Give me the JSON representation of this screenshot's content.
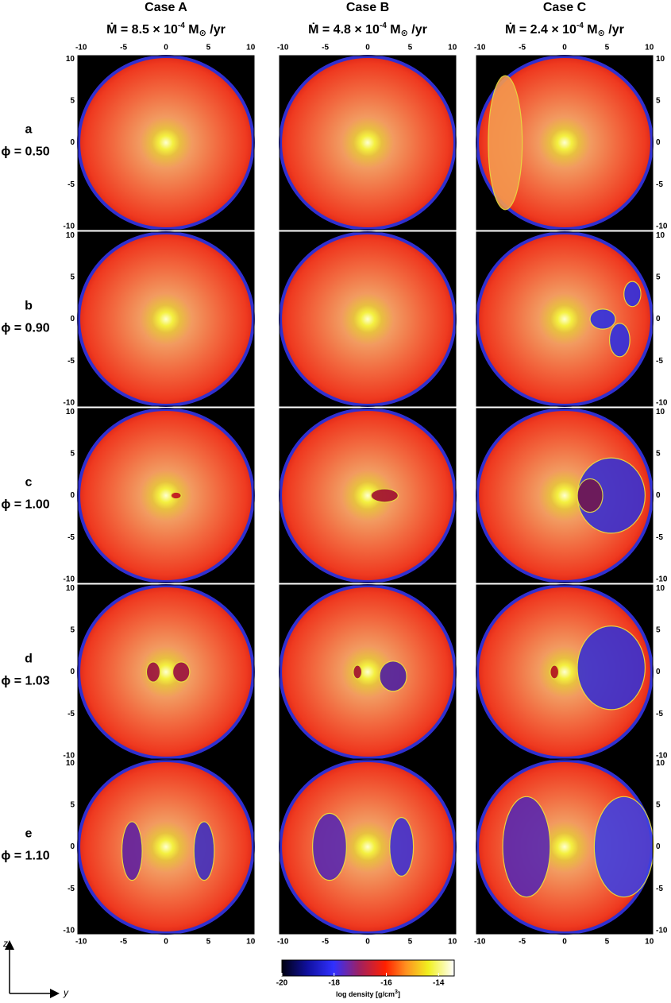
{
  "columns": [
    {
      "title": "Case A",
      "mdot": {
        "prefix": "Ṁ = 8.5 × 10",
        "exp": "-4",
        "unit": " M",
        "sub": "⊙",
        "suffix": " /yr"
      }
    },
    {
      "title": "Case B",
      "mdot": {
        "prefix": "Ṁ = 4.8 × 10",
        "exp": "-4",
        "unit": " M",
        "sub": "⊙",
        "suffix": " /yr"
      }
    },
    {
      "title": "Case C",
      "mdot": {
        "prefix": "Ṁ = 2.4 × 10",
        "exp": "-4",
        "unit": " M",
        "sub": "⊙",
        "suffix": " /yr"
      }
    }
  ],
  "rows": [
    {
      "label": "a",
      "phase": "ϕ = 0.50"
    },
    {
      "label": "b",
      "phase": "ϕ = 0.90"
    },
    {
      "label": "c",
      "phase": "ϕ = 1.00"
    },
    {
      "label": "d",
      "phase": "ϕ = 1.03"
    },
    {
      "label": "e",
      "phase": "ϕ = 1.10"
    }
  ],
  "axes": {
    "ticks": [
      -10,
      -5,
      0,
      5,
      10
    ],
    "lim": [
      -10.4,
      10.4
    ],
    "x_label": "y",
    "y_label": "z"
  },
  "colorbar": {
    "ticks": [
      -20,
      -18,
      -16,
      -14
    ],
    "lim": [
      -20,
      -13.4
    ],
    "label": "log density  [g/cm",
    "label_sup": "3",
    "label_end": "]"
  }
}
